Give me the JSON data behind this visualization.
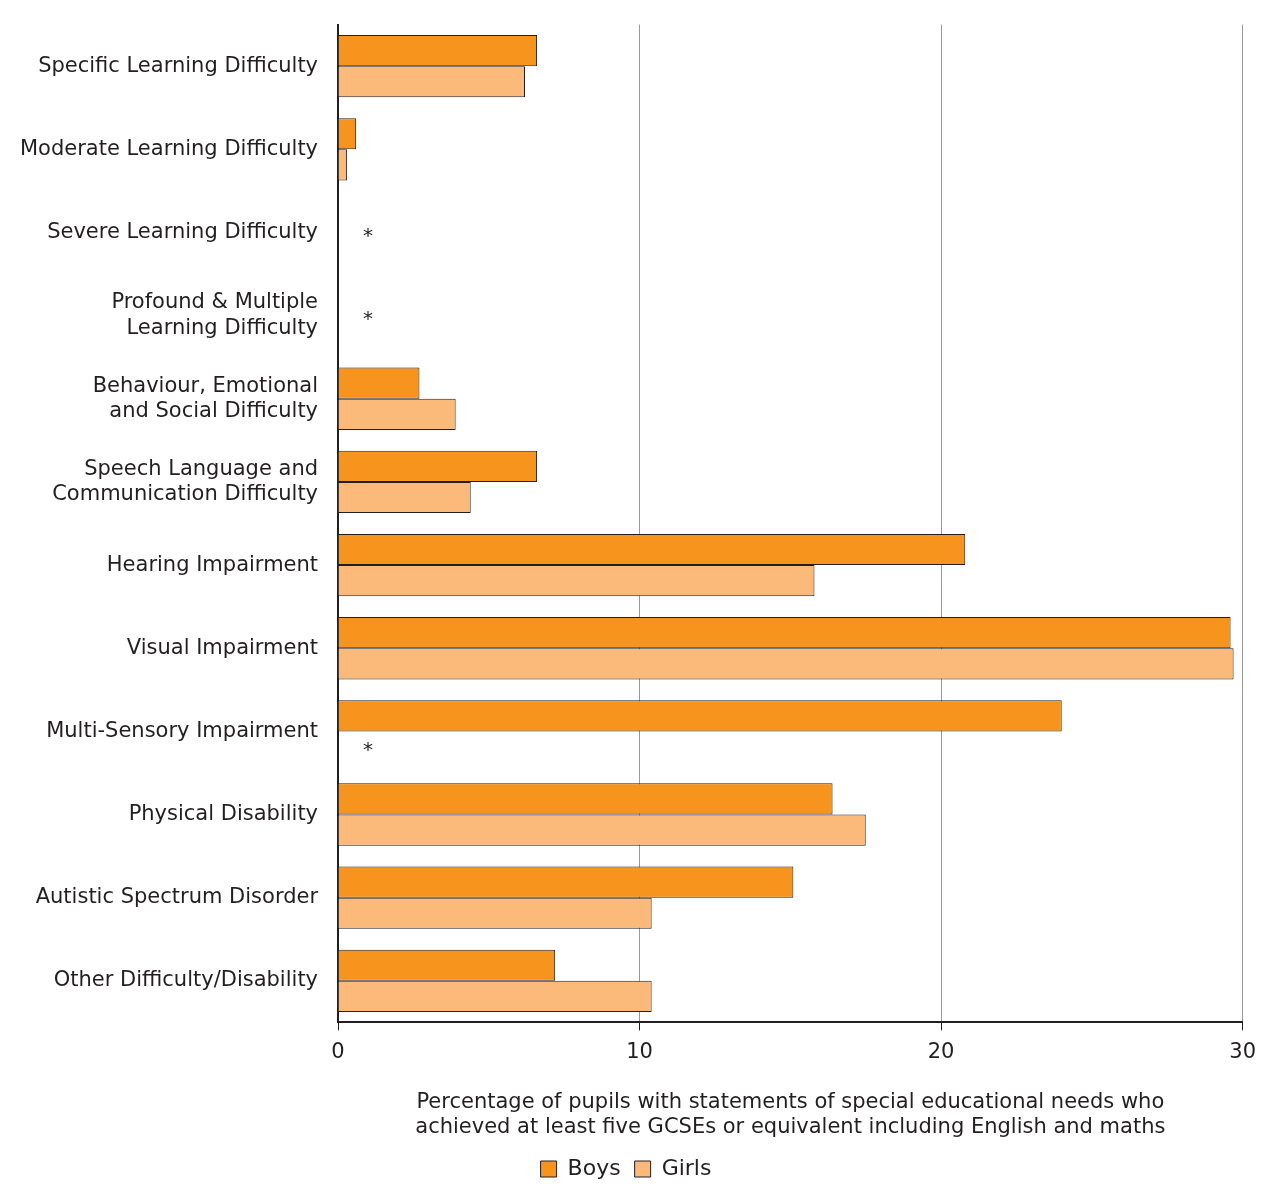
{
  "chart_data": {
    "type": "bar",
    "orientation": "horizontal",
    "xlabel": "Percentage of pupils with statements of special educational needs who achieved at least five GCSEs or equivalent including English and maths",
    "categories": [
      "Specific Learning Difficulty",
      "Moderate Learning Difficulty",
      "Severe Learning Difficulty",
      "Profound & Multiple Learning Difficulty",
      "Behaviour, Emotional and Social Difficulty",
      "Speech Language and Communication Difficulty",
      "Hearing Impairment",
      "Visual Impairment",
      "Multi-Sensory Impairment",
      "Physical Disability",
      "Autistic Spectrum Disorder",
      "Other Difficulty/Disability"
    ],
    "series": [
      {
        "name": "Boys",
        "color": "#f7941d",
        "values": [
          6.6,
          0.6,
          null,
          null,
          2.7,
          6.6,
          20.8,
          29.6,
          24.0,
          16.4,
          15.1,
          7.2
        ]
      },
      {
        "name": "Girls",
        "color": "#fbb97a",
        "values": [
          6.2,
          0.3,
          null,
          null,
          3.9,
          4.4,
          15.8,
          29.7,
          null,
          17.5,
          10.4,
          10.4
        ],
        "value_labels": [
          null,
          null,
          "*",
          "*",
          null,
          null,
          null,
          null,
          "*",
          null,
          null,
          null
        ]
      }
    ],
    "xlim": [
      0,
      30
    ],
    "xticks": [
      0,
      10,
      20,
      30
    ],
    "grid": "x",
    "legend": "bottom"
  }
}
